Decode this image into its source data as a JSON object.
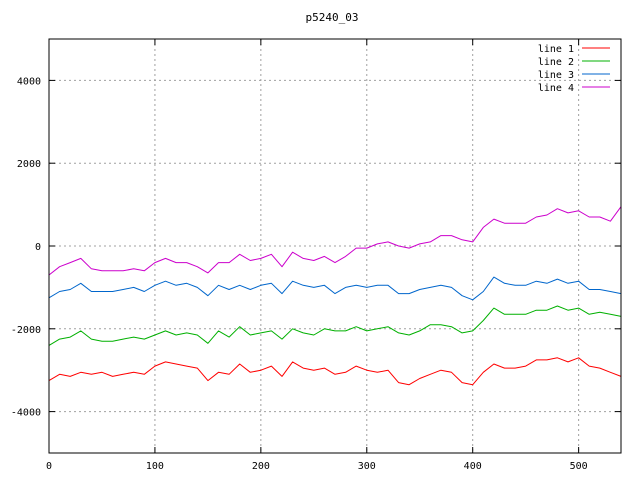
{
  "chart_data": {
    "type": "line",
    "title": "p5240_03",
    "xlabel": "",
    "ylabel": "",
    "xlim": [
      0,
      540
    ],
    "ylim": [
      -5000,
      5000
    ],
    "xticks": [
      0,
      100,
      200,
      300,
      400,
      500
    ],
    "yticks": [
      -4000,
      -2000,
      0,
      2000,
      4000
    ],
    "grid": true,
    "legend_position": "top-right",
    "series": [
      {
        "name": "line 1",
        "color": "#ff0000",
        "x": [
          0,
          10,
          20,
          30,
          40,
          50,
          60,
          70,
          80,
          90,
          100,
          110,
          120,
          130,
          140,
          150,
          160,
          170,
          180,
          190,
          200,
          210,
          220,
          230,
          240,
          250,
          260,
          270,
          280,
          290,
          300,
          310,
          320,
          330,
          340,
          350,
          360,
          370,
          380,
          390,
          400,
          410,
          420,
          430,
          440,
          450,
          460,
          470,
          480,
          490,
          500,
          510,
          520,
          530,
          540
        ],
        "y": [
          -3250,
          -3100,
          -3150,
          -3050,
          -3100,
          -3050,
          -3150,
          -3100,
          -3050,
          -3100,
          -2900,
          -2800,
          -2850,
          -2900,
          -2950,
          -3250,
          -3050,
          -3100,
          -2850,
          -3050,
          -3000,
          -2900,
          -3150,
          -2800,
          -2950,
          -3000,
          -2950,
          -3100,
          -3050,
          -2900,
          -3000,
          -3050,
          -3000,
          -3300,
          -3350,
          -3200,
          -3100,
          -3000,
          -3050,
          -3300,
          -3350,
          -3050,
          -2850,
          -2950,
          -2950,
          -2900,
          -2750,
          -2750,
          -2700,
          -2800,
          -2700,
          -2900,
          -2950,
          -3050,
          -3150
        ]
      },
      {
        "name": "line 2",
        "color": "#00b000",
        "x": [
          0,
          10,
          20,
          30,
          40,
          50,
          60,
          70,
          80,
          90,
          100,
          110,
          120,
          130,
          140,
          150,
          160,
          170,
          180,
          190,
          200,
          210,
          220,
          230,
          240,
          250,
          260,
          270,
          280,
          290,
          300,
          310,
          320,
          330,
          340,
          350,
          360,
          370,
          380,
          390,
          400,
          410,
          420,
          430,
          440,
          450,
          460,
          470,
          480,
          490,
          500,
          510,
          520,
          530,
          540
        ],
        "y": [
          -2400,
          -2250,
          -2200,
          -2050,
          -2250,
          -2300,
          -2300,
          -2250,
          -2200,
          -2250,
          -2150,
          -2050,
          -2150,
          -2100,
          -2150,
          -2350,
          -2050,
          -2200,
          -1950,
          -2150,
          -2100,
          -2050,
          -2250,
          -2000,
          -2100,
          -2150,
          -2000,
          -2050,
          -2050,
          -1950,
          -2050,
          -2000,
          -1950,
          -2100,
          -2150,
          -2050,
          -1900,
          -1900,
          -1950,
          -2100,
          -2050,
          -1800,
          -1500,
          -1650,
          -1650,
          -1650,
          -1550,
          -1550,
          -1450,
          -1550,
          -1500,
          -1650,
          -1600,
          -1650,
          -1700
        ]
      },
      {
        "name": "line 3",
        "color": "#0066cc",
        "x": [
          0,
          10,
          20,
          30,
          40,
          50,
          60,
          70,
          80,
          90,
          100,
          110,
          120,
          130,
          140,
          150,
          160,
          170,
          180,
          190,
          200,
          210,
          220,
          230,
          240,
          250,
          260,
          270,
          280,
          290,
          300,
          310,
          320,
          330,
          340,
          350,
          360,
          370,
          380,
          390,
          400,
          410,
          420,
          430,
          440,
          450,
          460,
          470,
          480,
          490,
          500,
          510,
          520,
          530,
          540
        ],
        "y": [
          -1250,
          -1100,
          -1050,
          -900,
          -1100,
          -1100,
          -1100,
          -1050,
          -1000,
          -1100,
          -950,
          -850,
          -950,
          -900,
          -1000,
          -1200,
          -950,
          -1050,
          -950,
          -1050,
          -950,
          -900,
          -1150,
          -850,
          -950,
          -1000,
          -950,
          -1150,
          -1000,
          -950,
          -1000,
          -950,
          -950,
          -1150,
          -1150,
          -1050,
          -1000,
          -950,
          -1000,
          -1200,
          -1300,
          -1100,
          -750,
          -900,
          -950,
          -950,
          -850,
          -900,
          -800,
          -900,
          -850,
          -1050,
          -1050,
          -1100,
          -1150
        ]
      },
      {
        "name": "line 4",
        "color": "#cc00cc",
        "x": [
          0,
          10,
          20,
          30,
          40,
          50,
          60,
          70,
          80,
          90,
          100,
          110,
          120,
          130,
          140,
          150,
          160,
          170,
          180,
          190,
          200,
          210,
          220,
          230,
          240,
          250,
          260,
          270,
          280,
          290,
          300,
          310,
          320,
          330,
          340,
          350,
          360,
          370,
          380,
          390,
          400,
          410,
          420,
          430,
          440,
          450,
          460,
          470,
          480,
          490,
          500,
          510,
          520,
          530,
          540
        ],
        "y": [
          -700,
          -500,
          -400,
          -300,
          -550,
          -600,
          -600,
          -600,
          -550,
          -600,
          -400,
          -300,
          -400,
          -400,
          -500,
          -650,
          -400,
          -400,
          -200,
          -350,
          -300,
          -200,
          -500,
          -150,
          -300,
          -350,
          -250,
          -400,
          -250,
          -50,
          -50,
          50,
          100,
          0,
          -50,
          50,
          100,
          250,
          250,
          150,
          100,
          450,
          650,
          550,
          550,
          550,
          700,
          750,
          900,
          800,
          850,
          700,
          700,
          600,
          950
        ]
      }
    ]
  }
}
